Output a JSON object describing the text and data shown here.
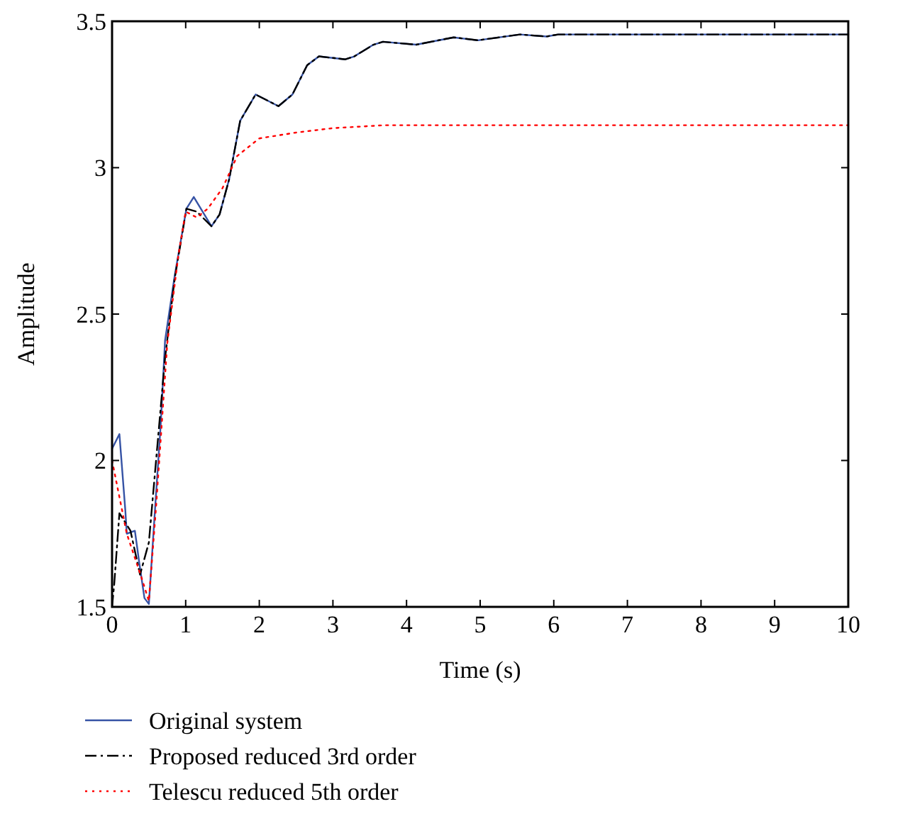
{
  "chart_data": {
    "type": "line",
    "xlabel": "Time (s)",
    "ylabel": "Amplitude",
    "xlim": [
      0,
      10
    ],
    "ylim": [
      1.5,
      3.5
    ],
    "xticks": [
      0,
      1,
      2,
      3,
      4,
      5,
      6,
      7,
      8,
      9,
      10
    ],
    "yticks": [
      1.5,
      2,
      2.5,
      3,
      3.5
    ],
    "grid": false,
    "legend": "bottom",
    "series": [
      {
        "name": "Original system",
        "color": "#3653a5",
        "line_style": "solid",
        "x": [
          0,
          0.1,
          0.18,
          0.2,
          0.31,
          0.37,
          0.44,
          0.5,
          0.58,
          0.66,
          0.72,
          0.85,
          1.01,
          1.11,
          1.35,
          1.46,
          1.59,
          1.74,
          1.95,
          2.26,
          2.45,
          2.65,
          2.81,
          3.17,
          3.29,
          3.55,
          3.68,
          4.13,
          4.64,
          4.97,
          5.54,
          5.9,
          6.06,
          10
        ],
        "values": [
          2.04,
          2.09,
          1.83,
          1.75,
          1.76,
          1.65,
          1.53,
          1.51,
          1.82,
          2.12,
          2.41,
          2.63,
          2.86,
          2.9,
          2.8,
          2.84,
          2.96,
          3.16,
          3.25,
          3.21,
          3.25,
          3.35,
          3.38,
          3.37,
          3.38,
          3.42,
          3.43,
          3.42,
          3.445,
          3.435,
          3.455,
          3.448,
          3.455,
          3.455
        ]
      },
      {
        "name": "Proposed reduced 3rd order",
        "color": "#000000",
        "line_style": "dashdot",
        "x": [
          0,
          0.03,
          0.1,
          0.25,
          0.38,
          0.5,
          0.72,
          0.85,
          1.01,
          1.15,
          1.35,
          1.46,
          1.59,
          1.74,
          1.95,
          2.26,
          2.45,
          2.65,
          2.81,
          3.17,
          3.29,
          3.55,
          3.68,
          4.13,
          4.64,
          4.97,
          5.54,
          5.9,
          6.06,
          10
        ],
        "values": [
          1.5,
          1.58,
          1.82,
          1.76,
          1.61,
          1.72,
          2.35,
          2.62,
          2.86,
          2.85,
          2.8,
          2.84,
          2.96,
          3.16,
          3.25,
          3.21,
          3.25,
          3.35,
          3.38,
          3.37,
          3.38,
          3.42,
          3.43,
          3.42,
          3.445,
          3.435,
          3.455,
          3.448,
          3.455,
          3.455
        ]
      },
      {
        "name": "Telescu reduced 5th order",
        "color": "#ff0000",
        "line_style": "dotted",
        "x": [
          0,
          0.2,
          0.4,
          0.5,
          0.6,
          0.75,
          0.9,
          1.0,
          1.15,
          1.3,
          1.5,
          1.7,
          2.0,
          2.5,
          3.0,
          3.7,
          10
        ],
        "values": [
          2.0,
          1.75,
          1.6,
          1.52,
          1.85,
          2.4,
          2.7,
          2.85,
          2.83,
          2.86,
          2.93,
          3.04,
          3.1,
          3.12,
          3.135,
          3.145,
          3.145
        ]
      }
    ]
  }
}
